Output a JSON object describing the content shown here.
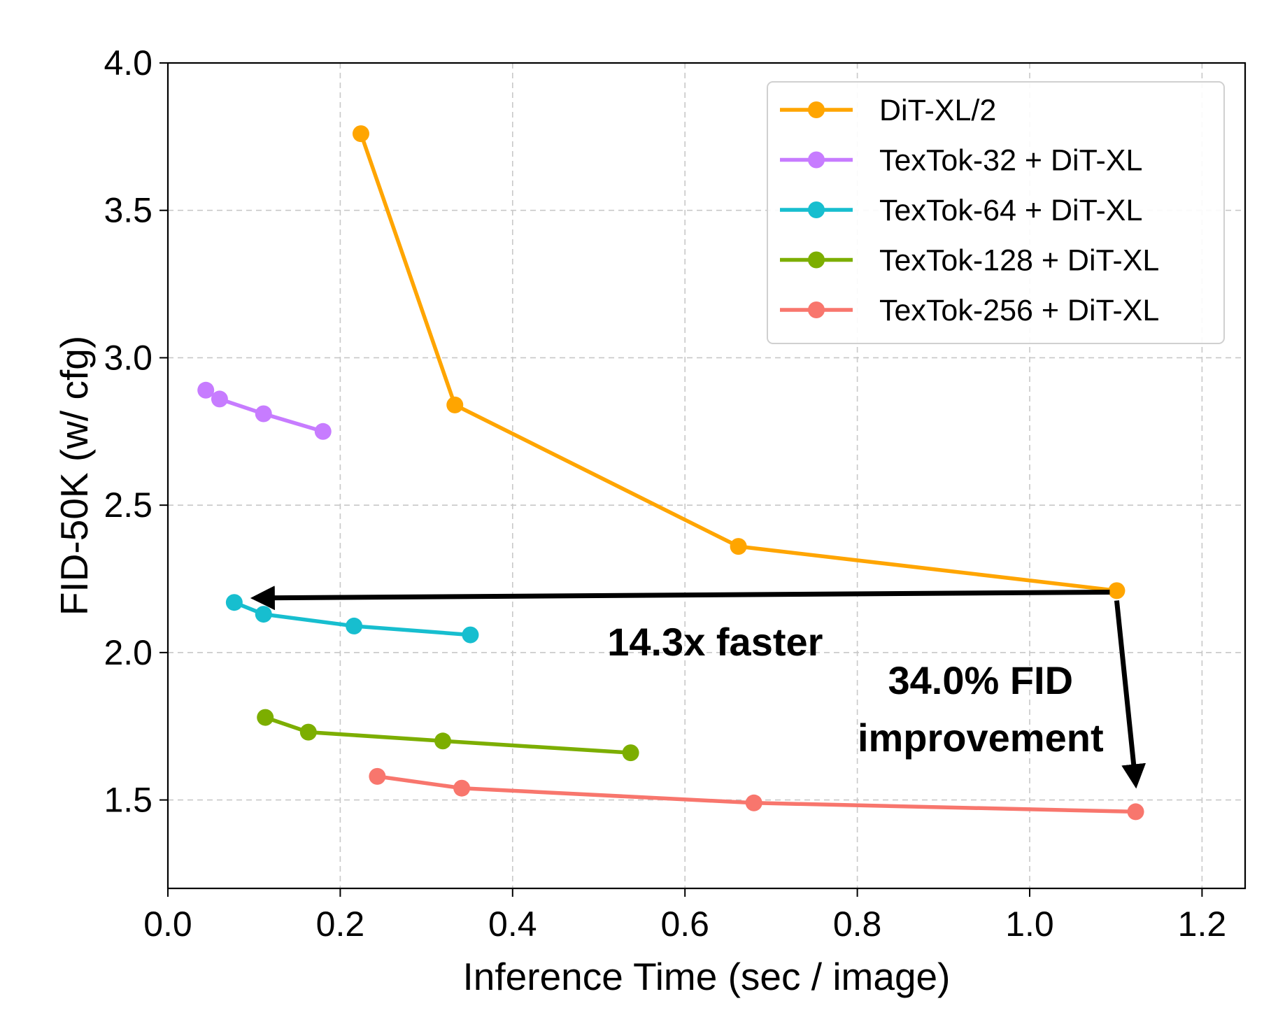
{
  "chart_data": {
    "type": "line",
    "xlabel": "Inference Time (sec / image)",
    "ylabel": "FID-50K (w/ cfg)",
    "xlim": [
      0.0,
      1.25
    ],
    "ylim": [
      1.2,
      4.0
    ],
    "xticks": [
      "0.0",
      "0.2",
      "0.4",
      "0.6",
      "0.8",
      "1.0",
      "1.2"
    ],
    "xtick_values": [
      0.0,
      0.2,
      0.4,
      0.6,
      0.8,
      1.0,
      1.2
    ],
    "yticks": [
      "1.5",
      "2.0",
      "2.5",
      "3.0",
      "3.5",
      "4.0"
    ],
    "ytick_values": [
      1.5,
      2.0,
      2.5,
      3.0,
      3.5,
      4.0
    ],
    "grid": true,
    "legend_position": "top-right",
    "series": [
      {
        "name": "DiT-XL/2",
        "color": "#FFA500",
        "points": [
          [
            0.224,
            3.76
          ],
          [
            0.333,
            2.84
          ],
          [
            0.662,
            2.36
          ],
          [
            1.101,
            2.21
          ]
        ]
      },
      {
        "name": "TexTok-32 + DiT-XL",
        "color": "#C77CFF",
        "points": [
          [
            0.044,
            2.89
          ],
          [
            0.06,
            2.86
          ],
          [
            0.111,
            2.81
          ],
          [
            0.18,
            2.75
          ]
        ]
      },
      {
        "name": "TexTok-64 + DiT-XL",
        "color": "#17BECF",
        "points": [
          [
            0.077,
            2.17
          ],
          [
            0.111,
            2.13
          ],
          [
            0.216,
            2.09
          ],
          [
            0.351,
            2.06
          ]
        ]
      },
      {
        "name": "TexTok-128 + DiT-XL",
        "color": "#7CAE00",
        "points": [
          [
            0.113,
            1.78
          ],
          [
            0.163,
            1.73
          ],
          [
            0.319,
            1.7
          ],
          [
            0.537,
            1.66
          ]
        ]
      },
      {
        "name": "TexTok-256 + DiT-XL",
        "color": "#F8766D",
        "points": [
          [
            0.243,
            1.58
          ],
          [
            0.341,
            1.54
          ],
          [
            0.68,
            1.49
          ],
          [
            1.123,
            1.46
          ]
        ]
      }
    ],
    "annotations": [
      {
        "text": "14.3x faster",
        "from": [
          1.101,
          2.205
        ],
        "to": [
          0.077,
          2.185
        ]
      },
      {
        "text_lines": [
          "34.0% FID",
          "improvement"
        ],
        "from": [
          1.101,
          2.205
        ],
        "to": [
          1.123,
          1.46
        ]
      }
    ]
  }
}
